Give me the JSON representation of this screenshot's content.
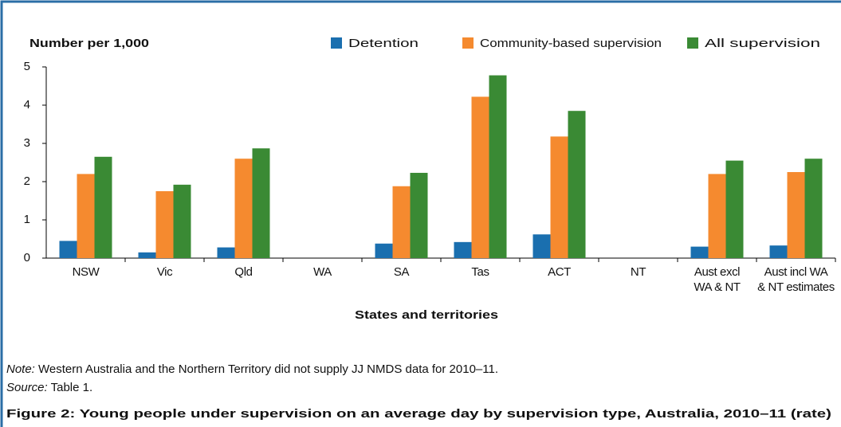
{
  "chart_data": {
    "type": "bar",
    "title": "Figure 2: Young people under supervision on an average day by supervision type, Australia, 2010–11 (rate)",
    "y_label": "Number per 1,000",
    "x_label": "States and territories",
    "categories": [
      "NSW",
      "Vic",
      "Qld",
      "WA",
      "SA",
      "Tas",
      "ACT",
      "NT",
      "Aust excl\nWA & NT",
      "Aust incl WA\n& NT estimates"
    ],
    "series": [
      {
        "name": "Detention",
        "color": "#1a6faf",
        "values": [
          0.45,
          0.15,
          0.28,
          null,
          0.38,
          0.42,
          0.62,
          null,
          0.3,
          0.33
        ]
      },
      {
        "name": "Community-based supervision",
        "color": "#f58a2f",
        "values": [
          2.2,
          1.75,
          2.6,
          null,
          1.88,
          4.22,
          3.18,
          null,
          2.2,
          2.25
        ]
      },
      {
        "name": "All supervision",
        "color": "#3a8a34",
        "values": [
          2.65,
          1.92,
          2.87,
          null,
          2.23,
          4.78,
          3.85,
          null,
          2.55,
          2.6
        ]
      }
    ],
    "ylim": [
      0,
      5
    ],
    "yticks": [
      0,
      1,
      2,
      3,
      4,
      5
    ],
    "grid": false,
    "legend": "top",
    "note": {
      "label": "Note:",
      "text": "Western Australia and the Northern Territory did not supply JJ NMDS data for 2010–11."
    },
    "source": {
      "label": "Source:",
      "text": "Table 1."
    }
  }
}
